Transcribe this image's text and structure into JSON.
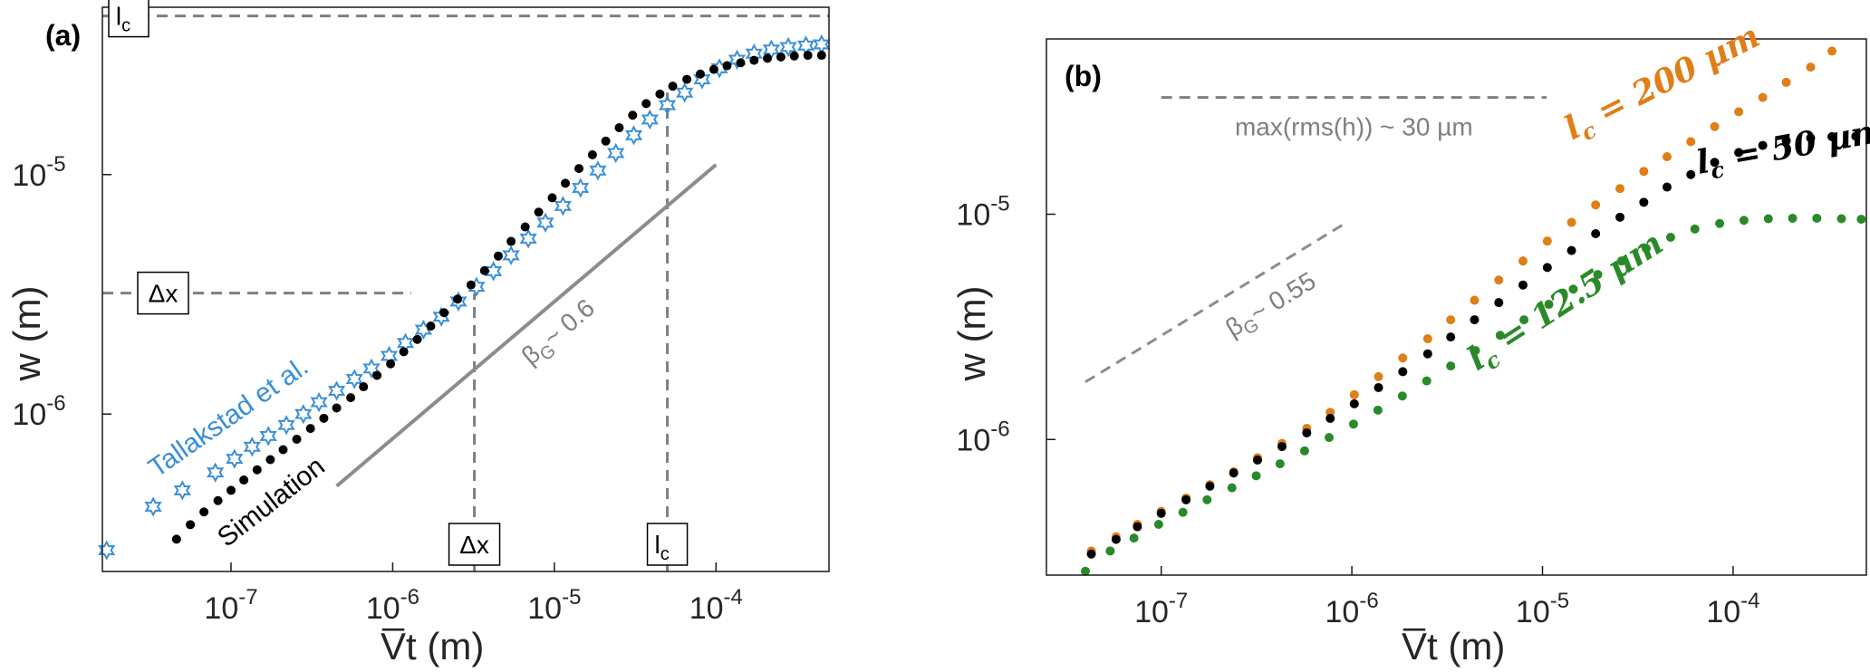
{
  "figure": {
    "panel_a_tag": "(a)",
    "panel_b_tag": "(b)"
  },
  "chart_data": [
    {
      "type": "scatter",
      "panel": "(a)",
      "xscale": "log",
      "yscale": "log",
      "xlabel": "V̅t  (m)",
      "ylabel": "w  (m)",
      "xlim": [
        1.6e-08,
        0.0005
      ],
      "ylim": [
        2.2e-07,
        5e-05
      ],
      "xticks": [
        {
          "value": 1e-07,
          "base": "10",
          "exp": "-7"
        },
        {
          "value": 1e-06,
          "base": "10",
          "exp": "-6"
        },
        {
          "value": 1e-05,
          "base": "10",
          "exp": "-5"
        },
        {
          "value": 0.0001,
          "base": "10",
          "exp": "-4"
        }
      ],
      "yticks": [
        {
          "value": 1e-06,
          "base": "10",
          "exp": "-6"
        },
        {
          "value": 1e-05,
          "base": "10",
          "exp": "-5"
        }
      ],
      "series": [
        {
          "name": "Tallakstad et al.",
          "marker": "star",
          "color": "#3a8fd6",
          "x": [
            1.7e-08,
            3.3e-08,
            5e-08,
            8e-08,
            1.05e-07,
            1.35e-07,
            1.7e-07,
            2.2e-07,
            2.8e-07,
            3.5e-07,
            4.5e-07,
            5.8e-07,
            7.4e-07,
            9.5e-07,
            1.2e-06,
            1.55e-06,
            2e-06,
            2.55e-06,
            3.3e-06,
            4.2e-06,
            5.4e-06,
            6.9e-06,
            8.8e-06,
            1.13e-05,
            1.45e-05,
            1.86e-05,
            2.4e-05,
            3.1e-05,
            3.9e-05,
            5e-05,
            6.4e-05,
            8.2e-05,
            0.000105,
            0.000135,
            0.000172,
            0.00022,
            0.00028,
            0.00036,
            0.00045
          ],
          "y": [
            2.7e-07,
            4.1e-07,
            4.8e-07,
            5.7e-07,
            6.5e-07,
            7.3e-07,
            8.1e-07,
            9e-07,
            1e-06,
            1.12e-06,
            1.25e-06,
            1.4e-06,
            1.55e-06,
            1.75e-06,
            1.98e-06,
            2.25e-06,
            2.55e-06,
            2.95e-06,
            3.4e-06,
            3.95e-06,
            4.6e-06,
            5.4e-06,
            6.3e-06,
            7.4e-06,
            8.8e-06,
            1.04e-05,
            1.23e-05,
            1.46e-05,
            1.7e-05,
            1.95e-05,
            2.2e-05,
            2.5e-05,
            2.78e-05,
            3.02e-05,
            3.2e-05,
            3.33e-05,
            3.41e-05,
            3.46e-05,
            3.5e-05
          ]
        },
        {
          "name": "Simulation",
          "marker": "dot",
          "color": "#000000",
          "x": [
            4.6e-08,
            5.6e-08,
            6.8e-08,
            8.3e-08,
            1e-07,
            1.2e-07,
            1.45e-07,
            1.75e-07,
            2.1e-07,
            2.55e-07,
            3.1e-07,
            3.75e-07,
            4.5e-07,
            5.5e-07,
            6.6e-07,
            8e-07,
            9.7e-07,
            1.17e-06,
            1.42e-06,
            1.72e-06,
            2.08e-06,
            2.52e-06,
            3.05e-06,
            3.7e-06,
            4.5e-06,
            5.4e-06,
            6.6e-06,
            8e-06,
            9.7e-06,
            1.17e-05,
            1.42e-05,
            1.72e-05,
            2.08e-05,
            2.52e-05,
            3.05e-05,
            3.7e-05,
            4.5e-05,
            5.4e-05,
            6.6e-05,
            8e-05,
            9.7e-05,
            0.000117,
            0.000142,
            0.000172,
            0.000208,
            0.000252,
            0.000305,
            0.00037,
            0.00045
          ],
          "y": [
            3e-07,
            3.45e-07,
            3.9e-07,
            4.35e-07,
            4.8e-07,
            5.3e-07,
            5.85e-07,
            6.45e-07,
            7.1e-07,
            7.85e-07,
            8.7e-07,
            9.6e-07,
            1.06e-06,
            1.17e-06,
            1.3e-06,
            1.45e-06,
            1.62e-06,
            1.82e-06,
            2.05e-06,
            2.33e-06,
            2.65e-06,
            3.02e-06,
            3.46e-06,
            3.97e-06,
            4.57e-06,
            5.26e-06,
            6.05e-06,
            6.97e-06,
            8e-06,
            9.2e-06,
            1.06e-05,
            1.21e-05,
            1.38e-05,
            1.57e-05,
            1.77e-05,
            1.98e-05,
            2.17e-05,
            2.34e-05,
            2.5e-05,
            2.63e-05,
            2.75e-05,
            2.85e-05,
            2.93e-05,
            3e-05,
            3.06e-05,
            3.1e-05,
            3.13e-05,
            3.15e-05,
            3.15e-05
          ]
        }
      ],
      "reference_lines": [
        {
          "name": "lc-level",
          "orientation": "horizontal",
          "y": 4.6e-05,
          "x_from": 1.6e-08,
          "x_to": 0.0005,
          "label": "l",
          "label_sub": "c"
        },
        {
          "name": "dx-level",
          "orientation": "horizontal",
          "y": 3.2e-06,
          "x_from": 1.6e-08,
          "x_to": 1.3e-06,
          "label": "Δx",
          "label_sub": ""
        },
        {
          "name": "dx-drop",
          "orientation": "vertical",
          "x": 3.2e-06,
          "y_from": 2.2e-07,
          "y_to": 3.2e-06,
          "label": "Δx",
          "label_sub": ""
        },
        {
          "name": "lc-drop",
          "orientation": "vertical",
          "x": 5e-05,
          "y_from": 2.2e-07,
          "y_to": 2.2e-05,
          "label": "l",
          "label_sub": "c"
        }
      ],
      "slope_guide": {
        "x": [
          4.5e-07,
          0.0001
        ],
        "y": [
          5e-07,
          1.1e-05
        ],
        "label": "β",
        "label_sub": "G",
        "label_suffix": "~ 0.6"
      },
      "annotations": [
        "Tallakstad et al.",
        "Simulation"
      ]
    },
    {
      "type": "scatter",
      "panel": "(b)",
      "xscale": "log",
      "yscale": "log",
      "xlabel": "V̅t  (m)",
      "ylabel": "w  (m)",
      "xlim": [
        2.5e-08,
        0.0005
      ],
      "ylim": [
        2.5e-07,
        6e-05
      ],
      "xticks": [
        {
          "value": 1e-07,
          "base": "10",
          "exp": "-7"
        },
        {
          "value": 1e-06,
          "base": "10",
          "exp": "-6"
        },
        {
          "value": 1e-05,
          "base": "10",
          "exp": "-5"
        },
        {
          "value": 0.0001,
          "base": "10",
          "exp": "-4"
        }
      ],
      "yticks": [
        {
          "value": 1e-06,
          "base": "10",
          "exp": "-6"
        },
        {
          "value": 1e-05,
          "base": "10",
          "exp": "-5"
        }
      ],
      "series": [
        {
          "name": "l_c = 200 µm",
          "marker": "dot",
          "color": "#e07e17",
          "label_var": "l",
          "label_sub": "c",
          "label_rest": " = 200 µm",
          "x": [
            4.3e-08,
            5.8e-08,
            7.5e-08,
            1e-07,
            1.35e-07,
            1.8e-07,
            2.4e-07,
            3.2e-07,
            4.3e-07,
            5.8e-07,
            7.7e-07,
            1.03e-06,
            1.38e-06,
            1.85e-06,
            2.5e-06,
            3.3e-06,
            4.4e-06,
            5.9e-06,
            7.9e-06,
            1.06e-05,
            1.42e-05,
            1.9e-05,
            2.55e-05,
            3.4e-05,
            4.5e-05,
            6e-05,
            8e-05,
            0.000107,
            0.000143,
            0.00019,
            0.000255,
            0.00033
          ],
          "y": [
            3.2e-07,
            3.7e-07,
            4.2e-07,
            4.8e-07,
            5.5e-07,
            6.3e-07,
            7.2e-07,
            8.3e-07,
            9.6e-07,
            1.12e-06,
            1.32e-06,
            1.58e-06,
            1.9e-06,
            2.3e-06,
            2.8e-06,
            3.4e-06,
            4.15e-06,
            5.1e-06,
            6.2e-06,
            7.6e-06,
            9.2e-06,
            1.1e-05,
            1.3e-05,
            1.55e-05,
            1.8e-05,
            2.1e-05,
            2.45e-05,
            2.85e-05,
            3.3e-05,
            3.85e-05,
            4.5e-05,
            5.3e-05
          ]
        },
        {
          "name": "l_c = 50 µm",
          "marker": "dot",
          "color": "#000000",
          "label_var": "l",
          "label_sub": "c",
          "label_rest": " = 50 µm",
          "x": [
            4.3e-08,
            5.8e-08,
            7.5e-08,
            1e-07,
            1.35e-07,
            1.8e-07,
            2.4e-07,
            3.2e-07,
            4.3e-07,
            5.8e-07,
            7.7e-07,
            1.03e-06,
            1.38e-06,
            1.85e-06,
            2.5e-06,
            3.3e-06,
            4.4e-06,
            5.9e-06,
            7.9e-06,
            1.06e-05,
            1.42e-05,
            1.9e-05,
            2.55e-05,
            3.4e-05,
            4.5e-05,
            6e-05,
            8e-05,
            0.000107,
            0.000143,
            0.00019,
            0.000255,
            0.00033,
            0.00044
          ],
          "y": [
            3.1e-07,
            3.6e-07,
            4.1e-07,
            4.7e-07,
            5.4e-07,
            6.2e-07,
            7.1e-07,
            8.1e-07,
            9.3e-07,
            1.07e-06,
            1.24e-06,
            1.44e-06,
            1.7e-06,
            2e-06,
            2.4e-06,
            2.85e-06,
            3.4e-06,
            4.05e-06,
            4.85e-06,
            5.8e-06,
            6.9e-06,
            8.2e-06,
            9.7e-06,
            1.13e-05,
            1.32e-05,
            1.5e-05,
            1.7e-05,
            1.88e-05,
            2.02e-05,
            2.12e-05,
            2.18e-05,
            2.21e-05,
            2.22e-05
          ]
        },
        {
          "name": "l_c = 12.5 µm",
          "marker": "dot",
          "color": "#2a8a2a",
          "label_var": "l",
          "label_sub": "c",
          "label_rest": " = 12.5 µm",
          "x": [
            4e-08,
            5.4e-08,
            7.2e-08,
            9.7e-08,
            1.3e-07,
            1.74e-07,
            2.35e-07,
            3.15e-07,
            4.2e-07,
            5.65e-07,
            7.6e-07,
            1.02e-06,
            1.37e-06,
            1.84e-06,
            2.47e-06,
            3.3e-06,
            4.45e-06,
            6e-06,
            8e-06,
            1.08e-05,
            1.45e-05,
            1.95e-05,
            2.6e-05,
            3.5e-05,
            4.7e-05,
            6.3e-05,
            8.5e-05,
            0.000114,
            0.000153,
            0.000205,
            0.000275,
            0.00037,
            0.00047
          ],
          "y": [
            2.6e-07,
            3.2e-07,
            3.65e-07,
            4.2e-07,
            4.75e-07,
            5.4e-07,
            6.1e-07,
            6.9e-07,
            7.8e-07,
            8.9e-07,
            1.02e-06,
            1.17e-06,
            1.35e-06,
            1.56e-06,
            1.82e-06,
            2.12e-06,
            2.48e-06,
            2.9e-06,
            3.4e-06,
            3.98e-06,
            4.65e-06,
            5.4e-06,
            6.2e-06,
            7.05e-06,
            7.9e-06,
            8.6e-06,
            9.1e-06,
            9.4e-06,
            9.55e-06,
            9.6e-06,
            9.6e-06,
            9.55e-06,
            9.5e-06
          ]
        }
      ],
      "reference_lines": [
        {
          "name": "max-rms-level",
          "orientation": "horizontal",
          "y": 3.3e-05,
          "x_from": 1e-07,
          "x_to": 1.05e-05,
          "label": "max(rms(h)) ~ 30 µm"
        }
      ],
      "slope_guide": {
        "x": [
          4e-08,
          9e-07
        ],
        "y": [
          1.8e-06,
          9e-06
        ],
        "label": "β",
        "label_sub": "G",
        "label_suffix": "~ 0.55"
      }
    }
  ]
}
